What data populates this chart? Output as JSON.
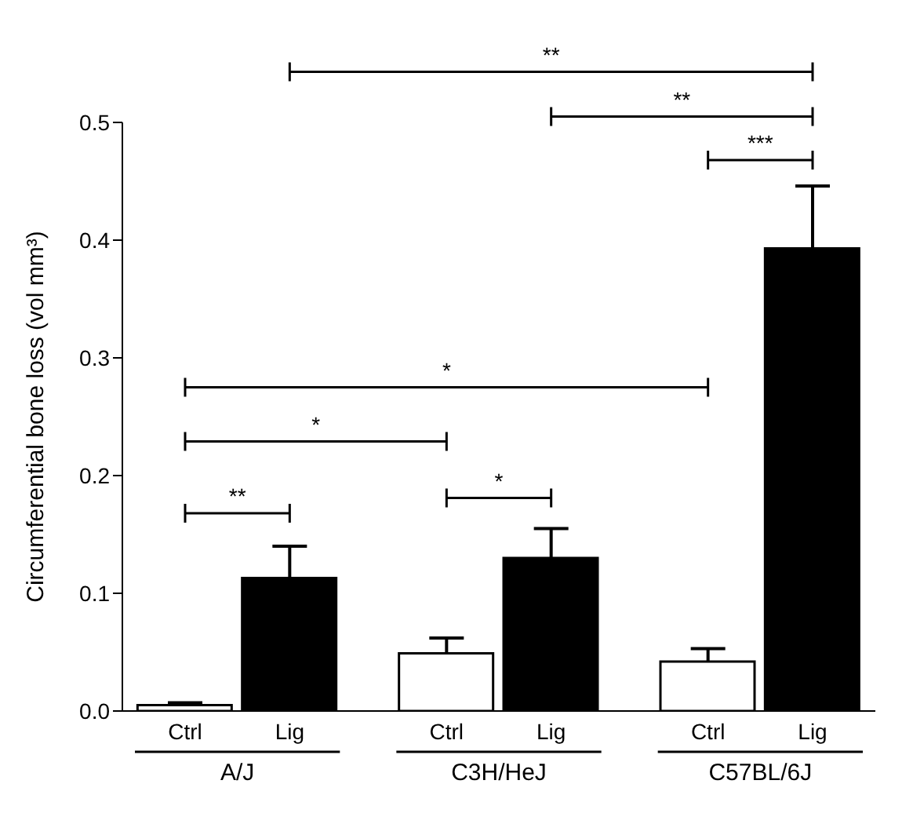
{
  "chart_data": {
    "type": "bar",
    "ylabel": "Circumferential bone loss (vol mm³)",
    "categories": [
      "Ctrl",
      "Lig",
      "Ctrl",
      "Lig",
      "Ctrl",
      "Lig"
    ],
    "values": [
      0.005,
      0.113,
      0.049,
      0.13,
      0.042,
      0.393
    ],
    "errors": [
      0.002,
      0.027,
      0.013,
      0.025,
      0.011,
      0.053
    ],
    "colors": [
      "#ffffff",
      "#000000",
      "#ffffff",
      "#000000",
      "#ffffff",
      "#000000"
    ],
    "ylim": [
      0,
      0.5
    ],
    "yticks": [
      {
        "value": 0,
        "label": "0.0"
      },
      0.1,
      0.2,
      0.3,
      0.4,
      0.5
    ],
    "annotations": [
      "A/J",
      "C3H/HeJ",
      "C57BL/6J",
      "**",
      "*",
      "*",
      "*",
      "***",
      "**",
      "**"
    ],
    "grid": false,
    "legend": false
  }
}
